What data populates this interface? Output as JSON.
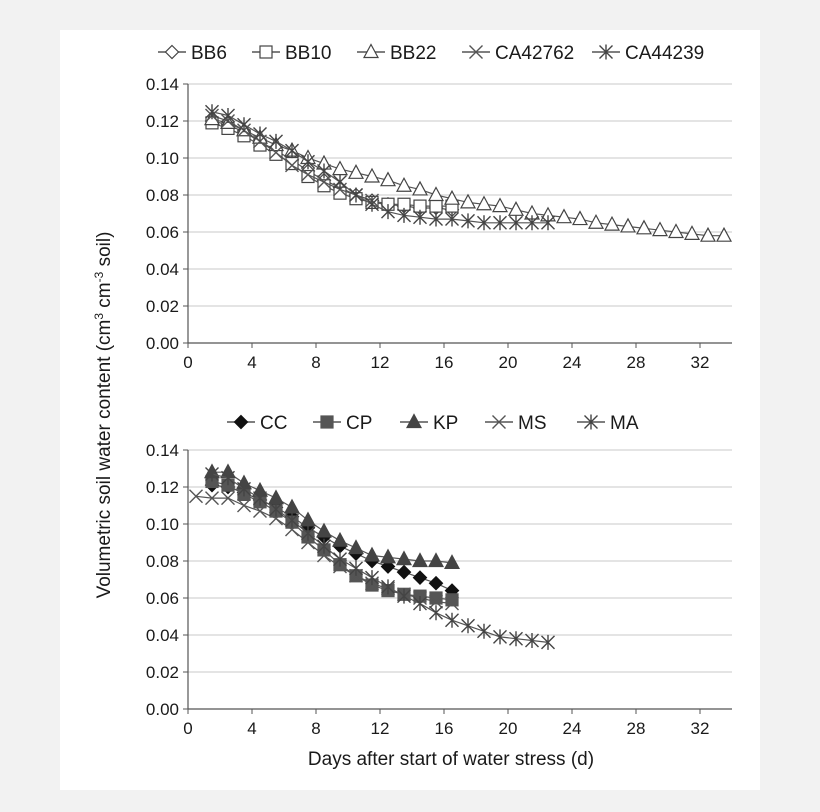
{
  "chart_data": [
    {
      "type": "line",
      "title": "",
      "xlabel": "",
      "ylabel": "",
      "xlim": [
        0,
        34
      ],
      "ylim": [
        0,
        0.14
      ],
      "xticks": [
        "0",
        "4",
        "8",
        "12",
        "16",
        "20",
        "24",
        "28",
        "32"
      ],
      "yticks": [
        "0.00",
        "0.02",
        "0.04",
        "0.06",
        "0.08",
        "0.10",
        "0.12",
        "0.14"
      ],
      "grid": "horizontal",
      "legend": "top",
      "series": [
        {
          "name": "BB6",
          "marker": "diamond-open",
          "x": [
            1.5,
            2.5,
            3.5,
            4.5,
            5.5,
            6.5,
            7.5,
            8.5,
            9.5,
            10.5,
            11.5,
            12.5,
            13.5,
            14.5,
            15.5,
            16.5
          ],
          "y": [
            0.12,
            0.118,
            0.114,
            0.109,
            0.104,
            0.099,
            0.093,
            0.088,
            0.084,
            0.08,
            0.077,
            0.075,
            0.074,
            0.073,
            0.073,
            0.072
          ]
        },
        {
          "name": "BB10",
          "marker": "square-open",
          "x": [
            1.5,
            2.5,
            3.5,
            4.5,
            5.5,
            6.5,
            7.5,
            8.5,
            9.5,
            10.5,
            11.5,
            12.5,
            13.5,
            14.5,
            15.5,
            16.5
          ],
          "y": [
            0.119,
            0.116,
            0.112,
            0.107,
            0.102,
            0.097,
            0.09,
            0.085,
            0.081,
            0.078,
            0.076,
            0.075,
            0.075,
            0.074,
            0.074,
            0.074
          ]
        },
        {
          "name": "BB22",
          "marker": "triangle-open",
          "x": [
            1.5,
            2.5,
            3.5,
            4.5,
            5.5,
            6.5,
            7.5,
            8.5,
            9.5,
            10.5,
            11.5,
            12.5,
            13.5,
            14.5,
            15.5,
            16.5,
            17.5,
            18.5,
            19.5,
            20.5,
            21.5,
            22.5,
            23.5,
            24.5,
            25.5,
            26.5,
            27.5,
            28.5,
            29.5,
            30.5,
            31.5,
            32.5,
            33.5
          ],
          "y": [
            0.121,
            0.119,
            0.115,
            0.111,
            0.107,
            0.104,
            0.1,
            0.097,
            0.094,
            0.092,
            0.09,
            0.088,
            0.085,
            0.083,
            0.08,
            0.078,
            0.076,
            0.075,
            0.074,
            0.072,
            0.07,
            0.069,
            0.068,
            0.067,
            0.065,
            0.064,
            0.063,
            0.062,
            0.061,
            0.06,
            0.059,
            0.058,
            0.058
          ]
        },
        {
          "name": "CA42762",
          "marker": "x",
          "x": [
            1.5,
            2.5,
            3.5,
            4.5,
            5.5,
            6.5,
            7.5,
            8.5,
            9.5,
            10.5,
            11.5
          ],
          "y": [
            0.123,
            0.12,
            0.115,
            0.109,
            0.103,
            0.096,
            0.091,
            0.087,
            0.083,
            0.08,
            0.077
          ]
        },
        {
          "name": "CA44239",
          "marker": "asterisk",
          "x": [
            1.5,
            2.5,
            3.5,
            4.5,
            5.5,
            6.5,
            7.5,
            8.5,
            9.5,
            10.5,
            11.5,
            12.5,
            13.5,
            14.5,
            15.5,
            16.5,
            17.5,
            18.5,
            19.5,
            20.5,
            21.5,
            22.5
          ],
          "y": [
            0.125,
            0.123,
            0.118,
            0.113,
            0.109,
            0.104,
            0.098,
            0.093,
            0.087,
            0.08,
            0.075,
            0.071,
            0.069,
            0.068,
            0.067,
            0.067,
            0.066,
            0.065,
            0.065,
            0.065,
            0.065,
            0.065
          ]
        }
      ]
    },
    {
      "type": "line",
      "title": "",
      "xlabel": "Days after start of water stress (d)",
      "ylabel": "",
      "xlim": [
        0,
        34
      ],
      "ylim": [
        0,
        0.14
      ],
      "xticks": [
        "0",
        "4",
        "8",
        "12",
        "16",
        "20",
        "24",
        "28",
        "32"
      ],
      "yticks": [
        "0.00",
        "0.02",
        "0.04",
        "0.06",
        "0.08",
        "0.10",
        "0.12",
        "0.14"
      ],
      "grid": "horizontal",
      "legend": "top",
      "series": [
        {
          "name": "CC",
          "marker": "diamond-filled",
          "x": [
            1.5,
            2.5,
            3.5,
            4.5,
            5.5,
            6.5,
            7.5,
            8.5,
            9.5,
            10.5,
            11.5,
            12.5,
            13.5,
            14.5,
            15.5,
            16.5
          ],
          "y": [
            0.121,
            0.12,
            0.117,
            0.113,
            0.109,
            0.104,
            0.098,
            0.093,
            0.088,
            0.084,
            0.08,
            0.077,
            0.074,
            0.071,
            0.068,
            0.064
          ]
        },
        {
          "name": "CP",
          "marker": "square-filled",
          "x": [
            1.5,
            2.5,
            3.5,
            4.5,
            5.5,
            6.5,
            7.5,
            8.5,
            9.5,
            10.5,
            11.5,
            12.5,
            13.5,
            14.5,
            15.5,
            16.5
          ],
          "y": [
            0.123,
            0.121,
            0.116,
            0.112,
            0.107,
            0.101,
            0.093,
            0.086,
            0.078,
            0.072,
            0.067,
            0.064,
            0.062,
            0.061,
            0.06,
            0.059
          ]
        },
        {
          "name": "KP",
          "marker": "triangle-filled",
          "x": [
            1.5,
            2.5,
            3.5,
            4.5,
            5.5,
            6.5,
            7.5,
            8.5,
            9.5,
            10.5,
            11.5,
            12.5,
            13.5,
            14.5,
            15.5,
            16.5
          ],
          "y": [
            0.128,
            0.128,
            0.122,
            0.118,
            0.114,
            0.109,
            0.102,
            0.096,
            0.091,
            0.087,
            0.083,
            0.082,
            0.081,
            0.08,
            0.08,
            0.079
          ]
        },
        {
          "name": "MS",
          "marker": "x",
          "x": [
            0.5,
            1.5,
            2.5,
            3.5,
            4.5,
            5.5,
            6.5,
            7.5,
            8.5,
            9.5,
            10.5,
            11.5,
            12.5,
            13.5,
            14.5,
            15.5,
            16.5
          ],
          "y": [
            0.115,
            0.114,
            0.114,
            0.11,
            0.107,
            0.103,
            0.097,
            0.09,
            0.083,
            0.077,
            0.072,
            0.068,
            0.065,
            0.062,
            0.06,
            0.058,
            0.057
          ]
        },
        {
          "name": "MA",
          "marker": "asterisk",
          "x": [
            1.5,
            2.5,
            3.5,
            4.5,
            5.5,
            6.5,
            7.5,
            8.5,
            9.5,
            10.5,
            11.5,
            12.5,
            13.5,
            14.5,
            15.5,
            16.5,
            17.5,
            18.5,
            19.5,
            20.5,
            21.5,
            22.5
          ],
          "y": [
            0.127,
            0.125,
            0.119,
            0.114,
            0.108,
            0.102,
            0.095,
            0.088,
            0.081,
            0.076,
            0.071,
            0.066,
            0.061,
            0.057,
            0.052,
            0.048,
            0.045,
            0.042,
            0.039,
            0.038,
            0.037,
            0.036
          ]
        }
      ]
    }
  ],
  "shared_ylabel": {
    "prefix": "Volumetric soil water content (cm",
    "sup1": "3",
    "mid": " cm",
    "sup2": "-3",
    "suffix": " soil)"
  }
}
